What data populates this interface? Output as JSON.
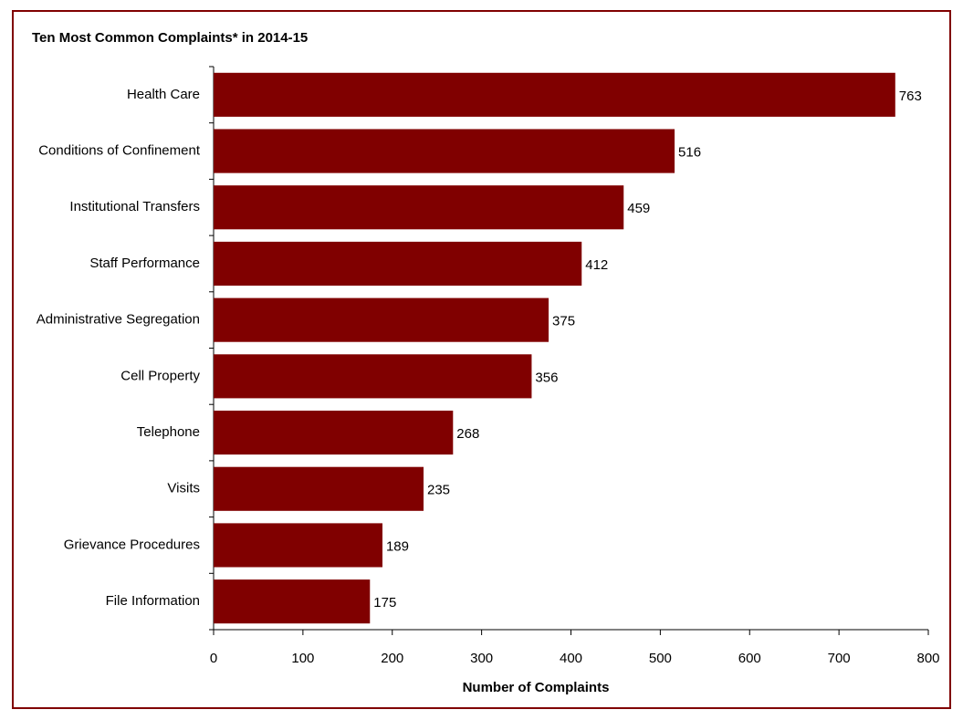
{
  "chart_data": {
    "type": "bar",
    "orientation": "horizontal",
    "title": "Ten Most Common Complaints* in 2014-15",
    "x_label": "Number of Complaints",
    "categories": [
      "Health Care",
      "Conditions of Confinement",
      "Institutional Transfers",
      "Staff Performance",
      "Administrative Segregation",
      "Cell Property",
      "Telephone",
      "Visits",
      "Grievance Procedures",
      "File Information"
    ],
    "values": [
      763,
      516,
      459,
      412,
      375,
      356,
      268,
      235,
      189,
      175
    ],
    "color": "#800000",
    "xlim": [
      0,
      800
    ],
    "xticks": [
      0,
      100,
      200,
      300,
      400,
      500,
      600,
      700,
      800
    ],
    "grid": false
  }
}
